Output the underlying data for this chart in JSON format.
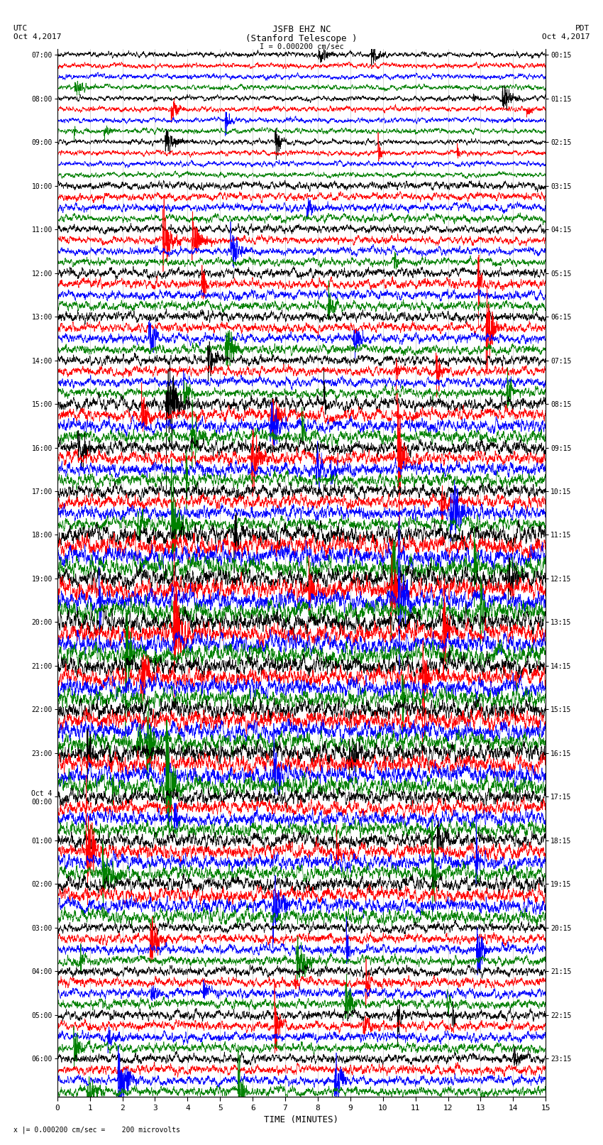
{
  "title_line1": "JSFB EHZ NC",
  "title_line2": "(Stanford Telescope )",
  "title_line3": "I = 0.000200 cm/sec",
  "xlabel": "TIME (MINUTES)",
  "bottom_note": "x |= 0.000200 cm/sec =    200 microvolts",
  "utc_labels": [
    "07:00",
    "08:00",
    "09:00",
    "10:00",
    "11:00",
    "12:00",
    "13:00",
    "14:00",
    "15:00",
    "16:00",
    "17:00",
    "18:00",
    "19:00",
    "20:00",
    "21:00",
    "22:00",
    "23:00",
    "Oct 4\n00:00",
    "01:00",
    "02:00",
    "03:00",
    "04:00",
    "05:00",
    "06:00"
  ],
  "pdt_labels": [
    "00:15",
    "01:15",
    "02:15",
    "03:15",
    "04:15",
    "05:15",
    "06:15",
    "07:15",
    "08:15",
    "09:15",
    "10:15",
    "11:15",
    "12:15",
    "13:15",
    "14:15",
    "15:15",
    "16:15",
    "17:15",
    "18:15",
    "19:15",
    "20:15",
    "21:15",
    "22:15",
    "23:15"
  ],
  "num_rows": 24,
  "traces_per_row": 4,
  "colors": [
    "black",
    "red",
    "blue",
    "green"
  ],
  "x_min": 0,
  "x_max": 15,
  "x_ticks": [
    0,
    1,
    2,
    3,
    4,
    5,
    6,
    7,
    8,
    9,
    10,
    11,
    12,
    13,
    14,
    15
  ],
  "bg_color": "white",
  "fig_width": 8.5,
  "fig_height": 16.13,
  "dpi": 100
}
